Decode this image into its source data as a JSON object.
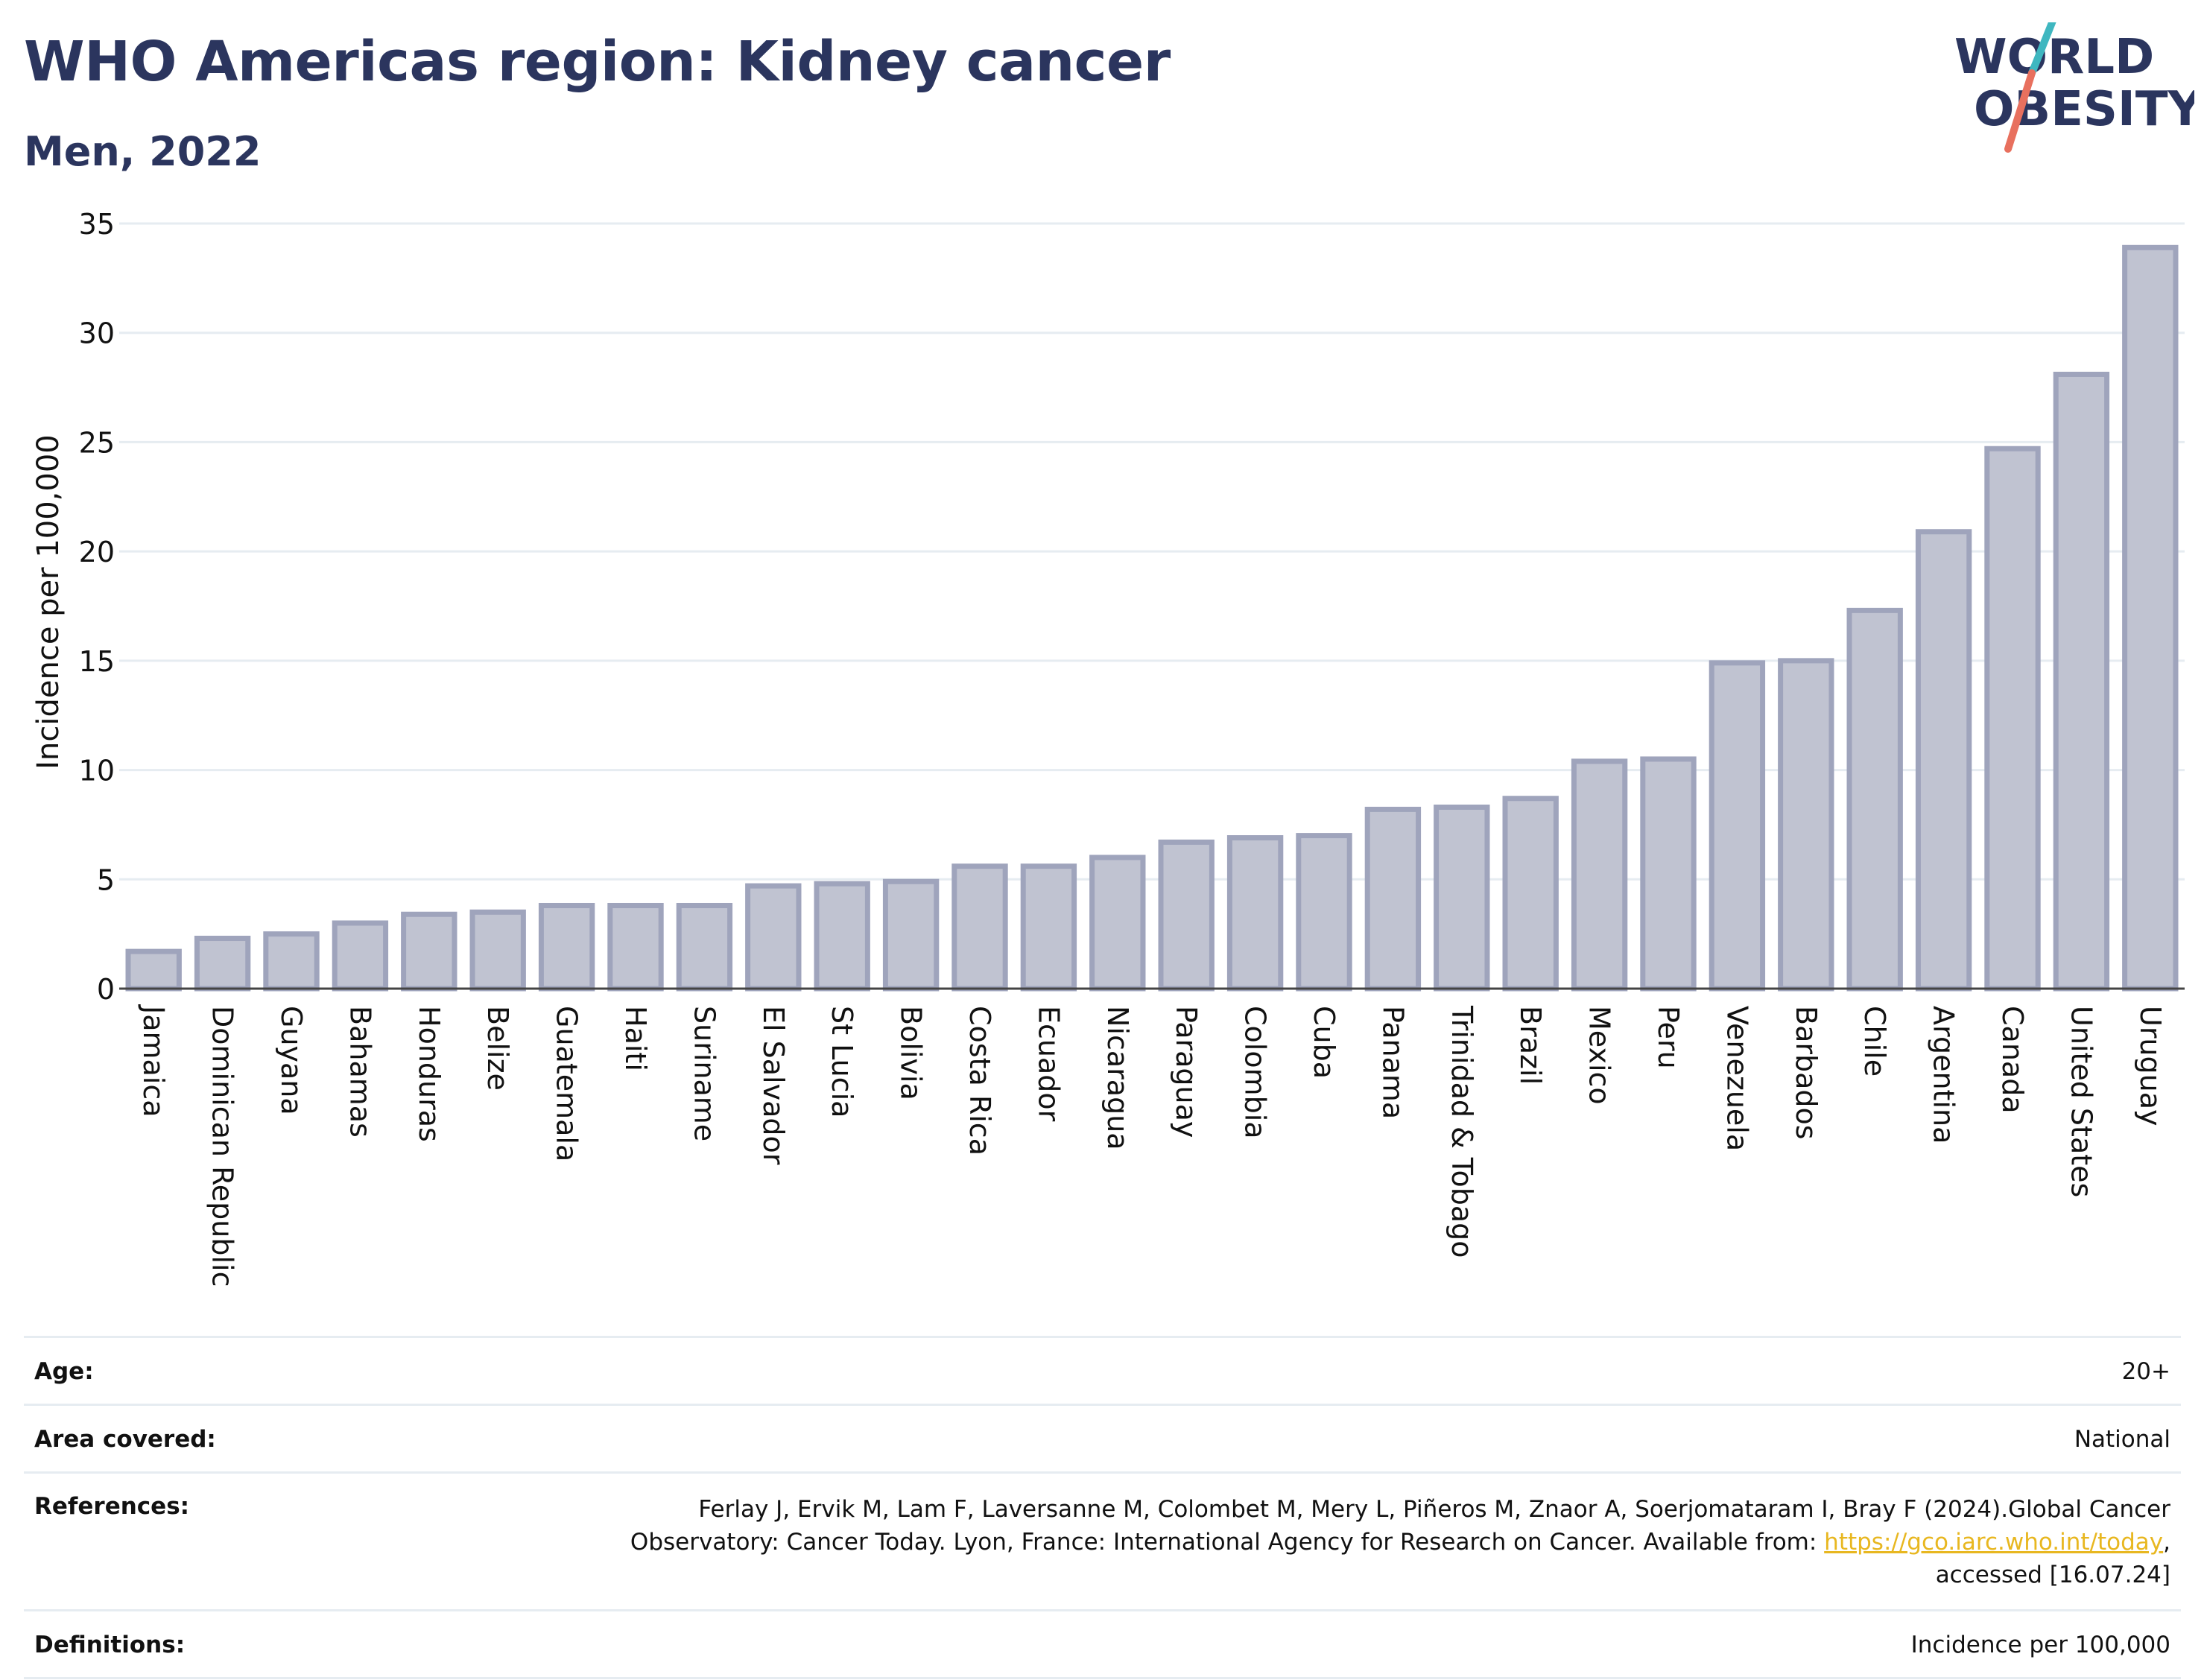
{
  "header": {
    "title": "WHO Americas region: Kidney cancer",
    "subtitle": "Men, 2022"
  },
  "logo": {
    "line1": "WORLD",
    "line2": "OBESITY",
    "text_color": "#2b355e",
    "slash_top_color": "#3fb7c0",
    "slash_bottom_color": "#e8705e"
  },
  "chart_data": {
    "type": "bar",
    "ylabel": "Incidence per 100,000",
    "xlabel": "",
    "ylim": [
      0,
      35
    ],
    "yticks": [
      0,
      5,
      10,
      15,
      20,
      25,
      30,
      35
    ],
    "grid": true,
    "bar_fill": "#c0c3d1",
    "bar_stroke": "#9fa4bc",
    "categories": [
      "Jamaica",
      "Dominican Republic",
      "Guyana",
      "Bahamas",
      "Honduras",
      "Belize",
      "Guatemala",
      "Haiti",
      "Suriname",
      "El Salvador",
      "St Lucia",
      "Bolivia",
      "Costa Rica",
      "Ecuador",
      "Nicaragua",
      "Paraguay",
      "Colombia",
      "Cuba",
      "Panama",
      "Trinidad & Tobago",
      "Brazil",
      "Mexico",
      "Peru",
      "Venezuela",
      "Barbados",
      "Chile",
      "Argentina",
      "Canada",
      "United States",
      "Uruguay"
    ],
    "values": [
      1.7,
      2.3,
      2.5,
      3.0,
      3.4,
      3.5,
      3.8,
      3.8,
      3.8,
      4.7,
      4.8,
      4.9,
      5.6,
      5.6,
      6.0,
      6.7,
      6.9,
      7.0,
      8.2,
      8.3,
      8.7,
      10.4,
      10.5,
      14.9,
      15.0,
      17.3,
      20.9,
      24.7,
      28.1,
      33.9
    ]
  },
  "info": {
    "age_label": "Age:",
    "age_value": "20+",
    "area_label": "Area covered:",
    "area_value": "National",
    "references_label": "References:",
    "references_line1": "Ferlay J, Ervik M, Lam F, Laversanne M, Colombet M, Mery L, Piñeros M, Znaor A, Soerjomataram I, Bray F (2024).Global Cancer",
    "references_line2_pre": "Observatory: Cancer Today. Lyon, France: International Agency for Research on Cancer. Available from: ",
    "references_link": "https://gco.iarc.who.int/today",
    "references_line2_post": ",",
    "references_line3": "accessed [16.07.24]",
    "definitions_label": "Definitions:",
    "definitions_value": "Incidence per 100,000"
  }
}
